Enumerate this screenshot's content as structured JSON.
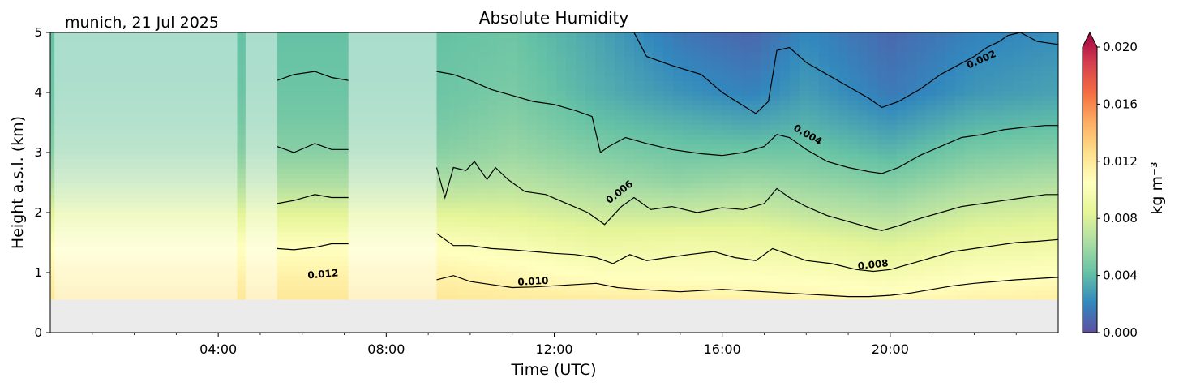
{
  "chart_data": {
    "type": "heatmap",
    "title": "Absolute Humidity",
    "location_date": "munich, 21 Jul 2025",
    "xlabel": "Time (UTC)",
    "ylabel": "Height a.s.l. (km)",
    "xlim_hours": [
      0,
      24
    ],
    "ylim": [
      0,
      5
    ],
    "ground_height_km": 0.55,
    "x_ticks": [
      {
        "hour": 4,
        "label": "04:00"
      },
      {
        "hour": 8,
        "label": "08:00"
      },
      {
        "hour": 12,
        "label": "12:00"
      },
      {
        "hour": 16,
        "label": "16:00"
      },
      {
        "hour": 20,
        "label": "20:00"
      }
    ],
    "y_ticks": [
      {
        "value": 0,
        "label": "0"
      },
      {
        "value": 1,
        "label": "1"
      },
      {
        "value": 2,
        "label": "2"
      },
      {
        "value": 3,
        "label": "3"
      },
      {
        "value": 4,
        "label": "4"
      },
      {
        "value": 5,
        "label": "5"
      }
    ],
    "colorbar": {
      "label": "kg m⁻³",
      "range": [
        0,
        0.02
      ],
      "extend": "max",
      "ticks": [
        {
          "value": 0.0,
          "label": "0.000"
        },
        {
          "value": 0.004,
          "label": "0.004"
        },
        {
          "value": 0.008,
          "label": "0.008"
        },
        {
          "value": 0.012,
          "label": "0.012"
        },
        {
          "value": 0.016,
          "label": "0.016"
        },
        {
          "value": 0.02,
          "label": "0.020"
        }
      ],
      "colormap_stops": [
        "#5e4fa2",
        "#3288bd",
        "#66c2a5",
        "#abdda4",
        "#e6f598",
        "#ffffbf",
        "#fee08b",
        "#fdae61",
        "#f46d43",
        "#d53e4f",
        "#9e0142"
      ]
    },
    "missing_data_ranges_hours": [
      [
        0.1,
        4.45
      ],
      [
        4.65,
        5.4
      ],
      [
        7.1,
        9.2
      ]
    ],
    "contour_lines": [
      {
        "value": 0.002,
        "label": "0.002",
        "x": [
          13.9,
          14.2,
          14.8,
          15.5,
          16.0,
          16.5,
          16.8,
          17.1,
          17.3,
          17.6,
          18.0,
          18.5,
          19.0,
          19.5,
          19.8,
          20.2,
          20.7,
          21.2,
          21.6,
          22.0,
          22.3,
          22.6,
          22.8,
          23.1,
          23.5,
          24.0
        ],
        "y": [
          5.0,
          4.6,
          4.45,
          4.3,
          4.0,
          3.78,
          3.65,
          3.85,
          4.7,
          4.75,
          4.5,
          4.3,
          4.1,
          3.9,
          3.75,
          3.85,
          4.05,
          4.3,
          4.45,
          4.6,
          4.75,
          4.85,
          4.95,
          5.0,
          4.85,
          4.8
        ]
      },
      {
        "value": 0.004,
        "label": "0.004",
        "x": [
          5.4,
          5.8,
          6.3,
          6.7,
          7.1,
          null,
          9.2,
          9.6,
          10.0,
          10.5,
          11.0,
          11.5,
          12.0,
          12.5,
          12.9,
          13.1,
          13.3,
          13.7,
          14.2,
          14.8,
          15.5,
          16.0,
          16.5,
          17.0,
          17.3,
          17.6,
          18.0,
          18.5,
          19.0,
          19.5,
          19.8,
          20.2,
          20.7,
          21.2,
          21.7,
          22.2,
          22.7,
          23.2,
          23.7,
          24.0
        ],
        "y": [
          4.2,
          4.3,
          4.35,
          4.25,
          4.2,
          null,
          4.35,
          4.3,
          4.2,
          4.05,
          3.95,
          3.85,
          3.8,
          3.7,
          3.6,
          3.0,
          3.1,
          3.25,
          3.15,
          3.05,
          2.98,
          2.95,
          3.0,
          3.1,
          3.3,
          3.25,
          3.05,
          2.85,
          2.75,
          2.68,
          2.65,
          2.75,
          2.95,
          3.1,
          3.25,
          3.3,
          3.38,
          3.42,
          3.45,
          3.45
        ]
      },
      {
        "value": 0.006,
        "label": "0.006",
        "x": [
          5.4,
          5.8,
          6.3,
          6.7,
          7.1,
          null,
          9.2,
          9.4,
          9.6,
          9.9,
          10.1,
          10.4,
          10.6,
          10.9,
          11.3,
          11.8,
          12.3,
          12.8,
          13.2,
          13.6,
          13.9,
          14.3,
          14.8,
          15.4,
          16.0,
          16.5,
          17.0,
          17.3,
          17.6,
          18.0,
          18.5,
          19.0,
          19.5,
          19.8,
          20.2,
          20.7,
          21.2,
          21.7,
          22.2,
          22.7,
          23.2,
          23.7,
          24.0
        ],
        "y": [
          3.1,
          3.0,
          3.15,
          3.05,
          3.05,
          null,
          2.75,
          2.25,
          2.75,
          2.7,
          2.85,
          2.55,
          2.75,
          2.55,
          2.35,
          2.3,
          2.15,
          2.0,
          1.8,
          2.1,
          2.25,
          2.05,
          2.1,
          2.0,
          2.08,
          2.05,
          2.15,
          2.4,
          2.25,
          2.1,
          1.95,
          1.85,
          1.75,
          1.7,
          1.78,
          1.9,
          2.0,
          2.1,
          2.15,
          2.2,
          2.25,
          2.3,
          2.3
        ]
      },
      {
        "value": 0.008,
        "label": "0.008",
        "x": [
          5.4,
          5.8,
          6.3,
          6.7,
          7.1,
          null,
          9.2,
          9.6,
          10.0,
          10.5,
          11.0,
          11.5,
          12.0,
          12.5,
          13.0,
          13.4,
          13.8,
          14.2,
          14.7,
          15.2,
          15.8,
          16.3,
          16.8,
          17.2,
          17.6,
          18.0,
          18.6,
          19.2,
          19.6,
          20.0,
          20.5,
          21.0,
          21.5,
          22.0,
          22.5,
          23.0,
          23.5,
          24.0
        ],
        "y": [
          2.15,
          2.2,
          2.3,
          2.25,
          2.25,
          null,
          1.65,
          1.45,
          1.45,
          1.4,
          1.38,
          1.35,
          1.32,
          1.3,
          1.25,
          1.15,
          1.3,
          1.2,
          1.25,
          1.3,
          1.35,
          1.25,
          1.2,
          1.4,
          1.3,
          1.2,
          1.15,
          1.05,
          1.02,
          1.05,
          1.15,
          1.25,
          1.35,
          1.4,
          1.45,
          1.5,
          1.52,
          1.55
        ]
      },
      {
        "value": 0.01,
        "label": "0.010",
        "x": [
          5.4,
          5.8,
          6.3,
          6.7,
          7.1,
          null,
          9.2,
          9.6,
          10.0,
          10.5,
          11.0,
          11.5,
          12.0,
          12.5,
          13.0,
          13.5,
          14.0,
          14.5,
          15.0,
          15.5,
          16.0,
          16.5,
          17.0,
          17.5,
          18.0,
          18.5,
          19.0,
          19.5,
          20.0,
          20.5,
          21.0,
          21.5,
          22.0,
          22.5,
          23.0,
          23.5,
          24.0
        ],
        "y": [
          1.4,
          1.38,
          1.42,
          1.48,
          1.48,
          null,
          0.88,
          0.95,
          0.85,
          0.8,
          0.75,
          0.76,
          0.78,
          0.8,
          0.82,
          0.75,
          0.72,
          0.7,
          0.68,
          0.7,
          0.72,
          0.7,
          0.68,
          0.66,
          0.64,
          0.62,
          0.6,
          0.6,
          0.62,
          0.66,
          0.72,
          0.78,
          0.82,
          0.85,
          0.88,
          0.9,
          0.92
        ]
      }
    ],
    "contour_label_spots": [
      {
        "label": "0.002",
        "x": 22.2,
        "y": 4.5,
        "angle": -24
      },
      {
        "label": "0.004",
        "x": 18.0,
        "y": 3.25,
        "angle": 30
      },
      {
        "label": "0.006",
        "x": 13.6,
        "y": 2.3,
        "angle": -38
      },
      {
        "label": "0.008",
        "x": 19.6,
        "y": 1.08,
        "angle": -6
      },
      {
        "label": "0.010",
        "x": 11.5,
        "y": 0.8,
        "angle": -3
      },
      {
        "label": "0.012",
        "x": 6.5,
        "y": 0.92,
        "angle": -5
      }
    ],
    "fill_profiles": [
      {
        "x": 9.3,
        "v": [
          0.0115,
          0.0108,
          0.0097,
          0.0078,
          0.0061,
          0.005,
          0.0045,
          0.0042,
          0.004
        ]
      },
      {
        "x": 11.0,
        "v": [
          0.0113,
          0.0104,
          0.0092,
          0.0077,
          0.0064,
          0.0055,
          0.005,
          0.0046,
          0.0042
        ]
      },
      {
        "x": 13.0,
        "v": [
          0.0112,
          0.0098,
          0.0085,
          0.0071,
          0.0058,
          0.0048,
          0.004,
          0.0034,
          0.003
        ]
      },
      {
        "x": 15.0,
        "v": [
          0.011,
          0.0098,
          0.0087,
          0.007,
          0.0053,
          0.0043,
          0.0034,
          0.0024,
          0.0014
        ]
      },
      {
        "x": 16.7,
        "v": [
          0.0108,
          0.0097,
          0.0086,
          0.0072,
          0.0057,
          0.0043,
          0.003,
          0.0018,
          0.0008
        ]
      },
      {
        "x": 18.0,
        "v": [
          0.0107,
          0.0096,
          0.0083,
          0.0067,
          0.0054,
          0.0043,
          0.0034,
          0.0027,
          0.002
        ]
      },
      {
        "x": 20.0,
        "v": [
          0.0104,
          0.0091,
          0.0077,
          0.0062,
          0.0049,
          0.0036,
          0.0025,
          0.0015,
          0.0009
        ]
      },
      {
        "x": 22.0,
        "v": [
          0.0108,
          0.0097,
          0.0085,
          0.0072,
          0.0058,
          0.0046,
          0.0035,
          0.0025,
          0.0018
        ]
      },
      {
        "x": 24.0,
        "v": [
          0.011,
          0.0099,
          0.0087,
          0.0075,
          0.0062,
          0.0049,
          0.0038,
          0.0029,
          0.0022
        ]
      }
    ],
    "fill_profile_heights_km": [
      0.55,
      1.0,
      1.5,
      2.0,
      2.5,
      3.0,
      3.5,
      4.0,
      5.0
    ]
  }
}
